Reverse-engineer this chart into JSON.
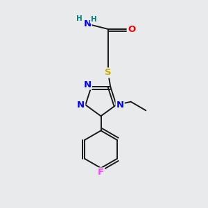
{
  "bg_color": "#e8eaec",
  "atom_colors": {
    "N": "#0000ff",
    "O": "#ff0000",
    "S": "#ccaa00",
    "F": "#ff44ff",
    "C": "#000000",
    "H": "#008080"
  },
  "bond_lw": 1.4,
  "font_size_atoms": 9.5,
  "font_size_small": 7.5,
  "xlim": [
    0,
    10
  ],
  "ylim": [
    0,
    10
  ]
}
